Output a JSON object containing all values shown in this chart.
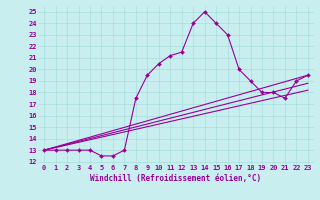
{
  "xlabel": "Windchill (Refroidissement éolien,°C)",
  "bg_color": "#c8eef0",
  "line_color": "#990099",
  "xlim": [
    -0.5,
    23.5
  ],
  "ylim": [
    11.8,
    25.5
  ],
  "xticks": [
    0,
    1,
    2,
    3,
    4,
    5,
    6,
    7,
    8,
    9,
    10,
    11,
    12,
    13,
    14,
    15,
    16,
    17,
    18,
    19,
    20,
    21,
    22,
    23
  ],
  "yticks": [
    12,
    13,
    14,
    15,
    16,
    17,
    18,
    19,
    20,
    21,
    22,
    23,
    24,
    25
  ],
  "main_x": [
    0,
    1,
    2,
    3,
    4,
    5,
    6,
    7,
    8,
    9,
    10,
    11,
    12,
    13,
    14,
    15,
    16,
    17,
    18,
    19,
    20,
    21,
    22,
    23
  ],
  "main_y": [
    13,
    13,
    13,
    13,
    13,
    12.5,
    12.5,
    13,
    17.5,
    19.5,
    20.5,
    21.2,
    21.5,
    24,
    25,
    24,
    23,
    20,
    19,
    18,
    18,
    17.5,
    19,
    19.5
  ],
  "line2_x": [
    0,
    23
  ],
  "line2_y": [
    13,
    19.5
  ],
  "line3_x": [
    0,
    23
  ],
  "line3_y": [
    13,
    18.8
  ],
  "line4_x": [
    0,
    23
  ],
  "line4_y": [
    13,
    18.2
  ],
  "grid_color": "#aadddd",
  "font_color": "#990099",
  "tick_fontsize": 5.0,
  "xlabel_fontsize": 5.5
}
